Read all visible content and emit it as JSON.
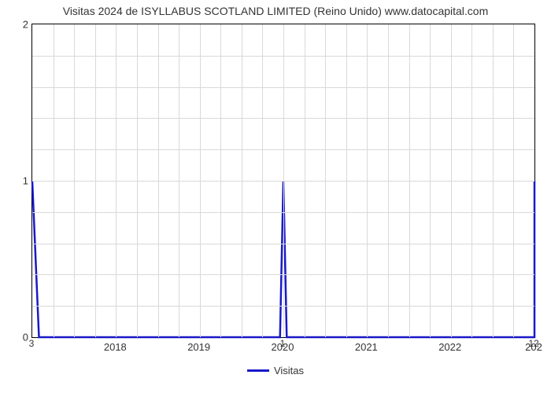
{
  "chart": {
    "type": "line",
    "title": "Visitas 2024 de ISYLLABUS SCOTLAND LIMITED (Reino Unido) www.datocapital.com",
    "title_fontsize": 14,
    "background_color": "#ffffff",
    "grid_color": "#d9d9d9",
    "border_color": "#000000",
    "series": {
      "name": "Visitas",
      "color": "#1919c8",
      "line_width": 2.5,
      "x": [
        2017.0,
        2017.08,
        2019.96,
        2020.0,
        2020.04,
        2023.0
      ],
      "y": [
        1,
        0,
        0,
        1,
        0,
        0
      ]
    },
    "xlim": [
      2017.0,
      2023.0
    ],
    "ylim": [
      0,
      2
    ],
    "y_ticks": [
      0,
      1,
      2
    ],
    "y_minor_per_major": 5,
    "x_tick_labels": [
      "2018",
      "2019",
      "2020",
      "2021",
      "2022"
    ],
    "x_tick_positions": [
      2018,
      2019,
      2020,
      2021,
      2022
    ],
    "x_minor_step": 0.25,
    "point_labels": [
      {
        "x": 2017.0,
        "text": "3",
        "below": true
      },
      {
        "x": 2020.0,
        "text": "1",
        "below": true
      },
      {
        "x": 2023.0,
        "text": "12",
        "below": true
      },
      {
        "x": 2023.0,
        "text": "202",
        "tick": true
      }
    ],
    "legend": {
      "label": "Visitas",
      "swatch_color": "#1919c8"
    }
  }
}
